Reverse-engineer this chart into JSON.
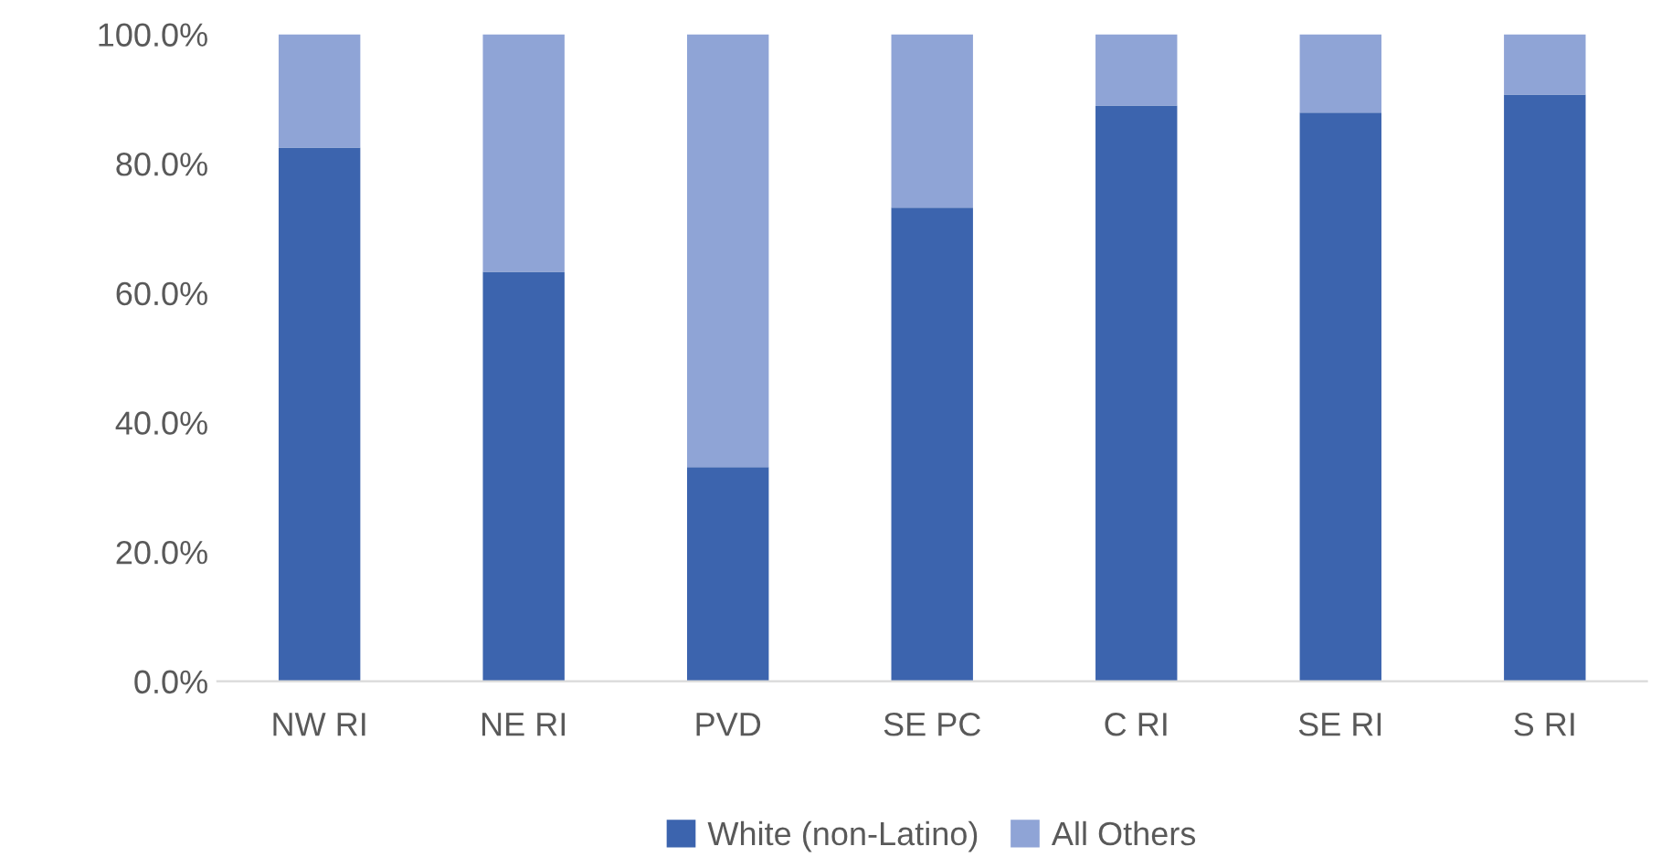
{
  "chart_data": {
    "type": "bar",
    "stacked": true,
    "categories": [
      "NW RI",
      "NE RI",
      "PVD",
      "SE PC",
      "C RI",
      "SE RI",
      "S RI"
    ],
    "series": [
      {
        "name": "White (non-Latino)",
        "color": "#3c64ae",
        "values": [
          82.5,
          63.3,
          33.1,
          73.2,
          89.0,
          87.9,
          90.7
        ]
      },
      {
        "name": "All Others",
        "color": "#8fa4d6",
        "values": [
          17.5,
          36.7,
          66.9,
          26.8,
          11.0,
          12.1,
          9.3
        ]
      }
    ],
    "ylim": [
      0,
      100
    ],
    "yticks": [
      {
        "value": 0,
        "label": "0.0%"
      },
      {
        "value": 20,
        "label": "20.0%"
      },
      {
        "value": 40,
        "label": "40.0%"
      },
      {
        "value": 60,
        "label": "60.0%"
      },
      {
        "value": 80,
        "label": "80.0%"
      },
      {
        "value": 100,
        "label": "100.0%"
      }
    ],
    "grid": false,
    "legend": "bottom"
  }
}
